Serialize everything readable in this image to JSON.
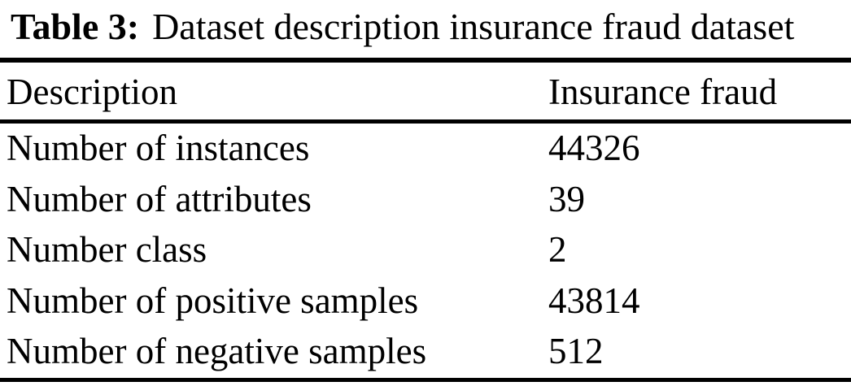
{
  "caption": {
    "label": "Table 3:",
    "text": "Dataset description insurance fraud dataset"
  },
  "table": {
    "headers": [
      "Description",
      "Insurance fraud"
    ],
    "rows": [
      {
        "description": "Number of instances",
        "value": "44326"
      },
      {
        "description": "Number of attributes",
        "value": "39"
      },
      {
        "description": "Number class",
        "value": "2"
      },
      {
        "description": "Number of positive samples",
        "value": "43814"
      },
      {
        "description": "Number of negative samples",
        "value": "512"
      }
    ]
  },
  "colors": {
    "background": "#ffffff",
    "text": "#000000",
    "rule": "#000000"
  }
}
